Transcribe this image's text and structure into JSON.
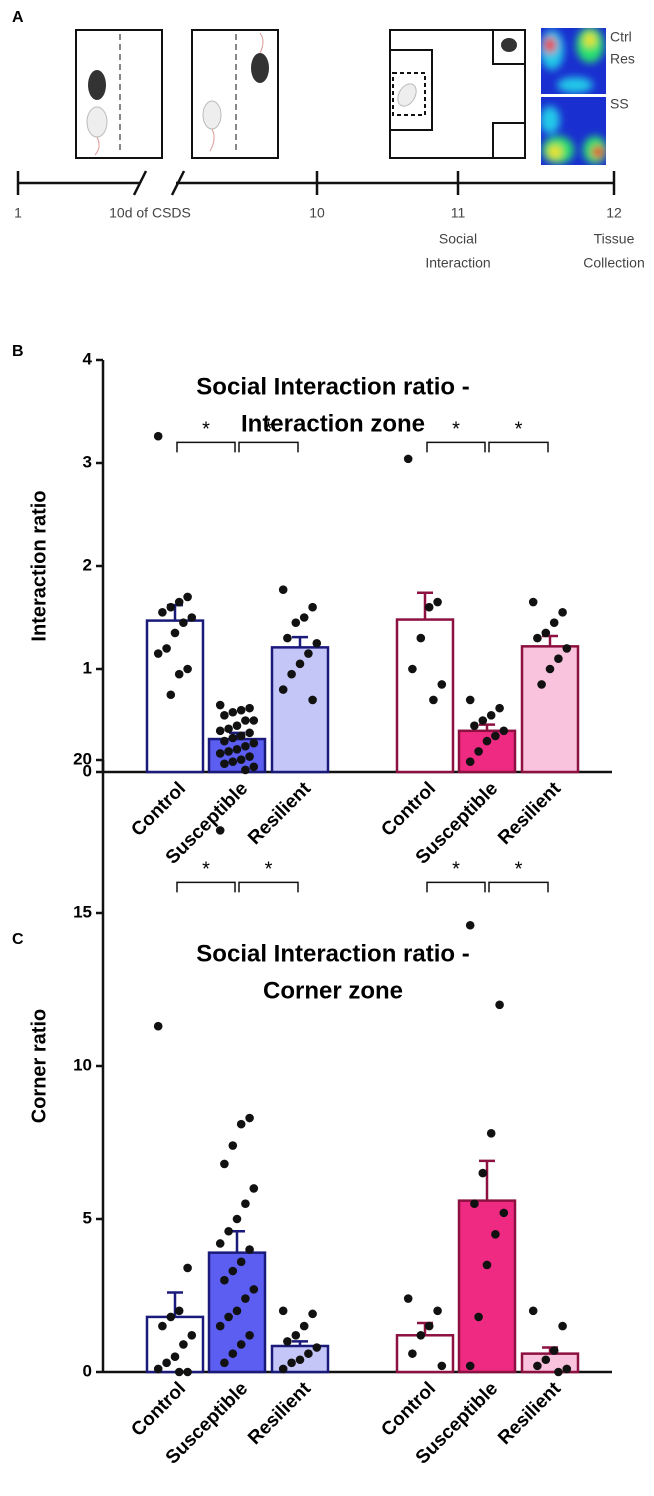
{
  "timeline": {
    "panel_label": "A",
    "ticks": [
      {
        "day": "1"
      },
      {
        "day": "10"
      },
      {
        "day": "11",
        "event": [
          "Social",
          "Interaction"
        ]
      },
      {
        "day": "12",
        "event": [
          "Tissue",
          "Collection"
        ]
      }
    ],
    "break_label": "10d of CSDS",
    "heatmap_labels": [
      "Ctrl",
      "Res",
      "SS"
    ]
  },
  "chart_data": [
    {
      "type": "bar",
      "panel_label": "B",
      "title": [
        "Social Interaction ratio -",
        "Interaction zone"
      ],
      "y_label": "Interaction ratio",
      "categories": [
        "Control",
        "Susceptible",
        "Resilient",
        "Control",
        "Susceptible",
        "Resilient"
      ],
      "values": [
        1.47,
        0.32,
        1.21,
        1.48,
        0.4,
        1.22
      ],
      "errors": [
        0.15,
        0.06,
        0.1,
        0.26,
        0.06,
        0.1
      ],
      "points": [
        [
          3.26,
          1.7,
          1.65,
          1.6,
          1.55,
          1.5,
          1.45,
          1.35,
          1.2,
          1.15,
          1.0,
          0.95,
          0.75
        ],
        [
          0.65,
          0.62,
          0.6,
          0.58,
          0.55,
          0.5,
          0.5,
          0.45,
          0.42,
          0.4,
          0.38,
          0.35,
          0.33,
          0.3,
          0.28,
          0.25,
          0.22,
          0.2,
          0.18,
          0.15,
          0.12,
          0.1,
          0.08,
          0.05,
          0.02
        ],
        [
          1.77,
          1.6,
          1.5,
          1.45,
          1.3,
          1.25,
          1.15,
          1.05,
          0.95,
          0.8,
          0.7
        ],
        [
          3.04,
          1.65,
          1.6,
          1.3,
          1.0,
          0.85,
          0.7
        ],
        [
          0.7,
          0.62,
          0.55,
          0.5,
          0.45,
          0.4,
          0.35,
          0.3,
          0.2,
          0.1
        ],
        [
          1.65,
          1.55,
          1.45,
          1.35,
          1.3,
          1.2,
          1.1,
          1.0,
          0.85
        ]
      ],
      "colors": [
        "#ffffff",
        "#5b5ef0",
        "#c4c6f7",
        "#ffffff",
        "#ee2a82",
        "#f9c3dd"
      ],
      "edge_colors": [
        "#1a1a7a",
        "#1a1a7a",
        "#1a1a7a",
        "#8c1040",
        "#8c1040",
        "#8c1040"
      ],
      "brackets": [
        [
          0,
          1
        ],
        [
          1,
          2
        ],
        [
          3,
          4
        ],
        [
          4,
          5
        ]
      ],
      "bracket_label": "*",
      "ylim": [
        0,
        4
      ],
      "yticks": [
        0,
        1,
        2,
        3,
        4
      ]
    },
    {
      "type": "bar",
      "panel_label": "C",
      "title": [
        "Social Interaction ratio -",
        "Corner zone"
      ],
      "y_label": "Corner ratio",
      "categories": [
        "Control",
        "Susceptible",
        "Resilient",
        "Control",
        "Susceptible",
        "Resilient"
      ],
      "values": [
        1.8,
        3.9,
        0.85,
        1.2,
        5.6,
        0.6
      ],
      "errors": [
        0.8,
        0.7,
        0.15,
        0.4,
        1.3,
        0.2
      ],
      "points": [
        [
          11.3,
          3.4,
          2.0,
          1.8,
          1.5,
          1.2,
          0.9,
          0.5,
          0.3,
          0.1,
          0.0,
          0.0
        ],
        [
          17.7,
          8.3,
          8.1,
          7.4,
          6.8,
          6.0,
          5.5,
          5.0,
          4.6,
          4.2,
          4.0,
          3.6,
          3.3,
          3.0,
          2.7,
          2.4,
          2.0,
          1.8,
          1.5,
          1.2,
          0.9,
          0.6,
          0.3
        ],
        [
          2.0,
          1.9,
          1.5,
          1.2,
          1.0,
          0.8,
          0.6,
          0.4,
          0.3,
          0.1
        ],
        [
          2.4,
          2.0,
          1.5,
          1.2,
          0.6,
          0.2
        ],
        [
          14.6,
          12.0,
          7.8,
          6.5,
          5.5,
          5.2,
          4.5,
          3.5,
          1.8,
          0.2
        ],
        [
          2.0,
          1.5,
          0.7,
          0.4,
          0.2,
          0.1,
          0.0
        ]
      ],
      "colors": [
        "#ffffff",
        "#5b5ef0",
        "#c4c6f7",
        "#ffffff",
        "#ee2a82",
        "#f9c3dd"
      ],
      "edge_colors": [
        "#1a1a7a",
        "#1a1a7a",
        "#1a1a7a",
        "#8c1040",
        "#8c1040",
        "#8c1040"
      ],
      "brackets": [
        [
          0,
          1
        ],
        [
          1,
          2
        ],
        [
          3,
          4
        ],
        [
          4,
          5
        ]
      ],
      "bracket_label": "*",
      "ylim": [
        0,
        20
      ],
      "yticks": [
        0,
        5,
        10,
        15,
        20
      ]
    }
  ]
}
